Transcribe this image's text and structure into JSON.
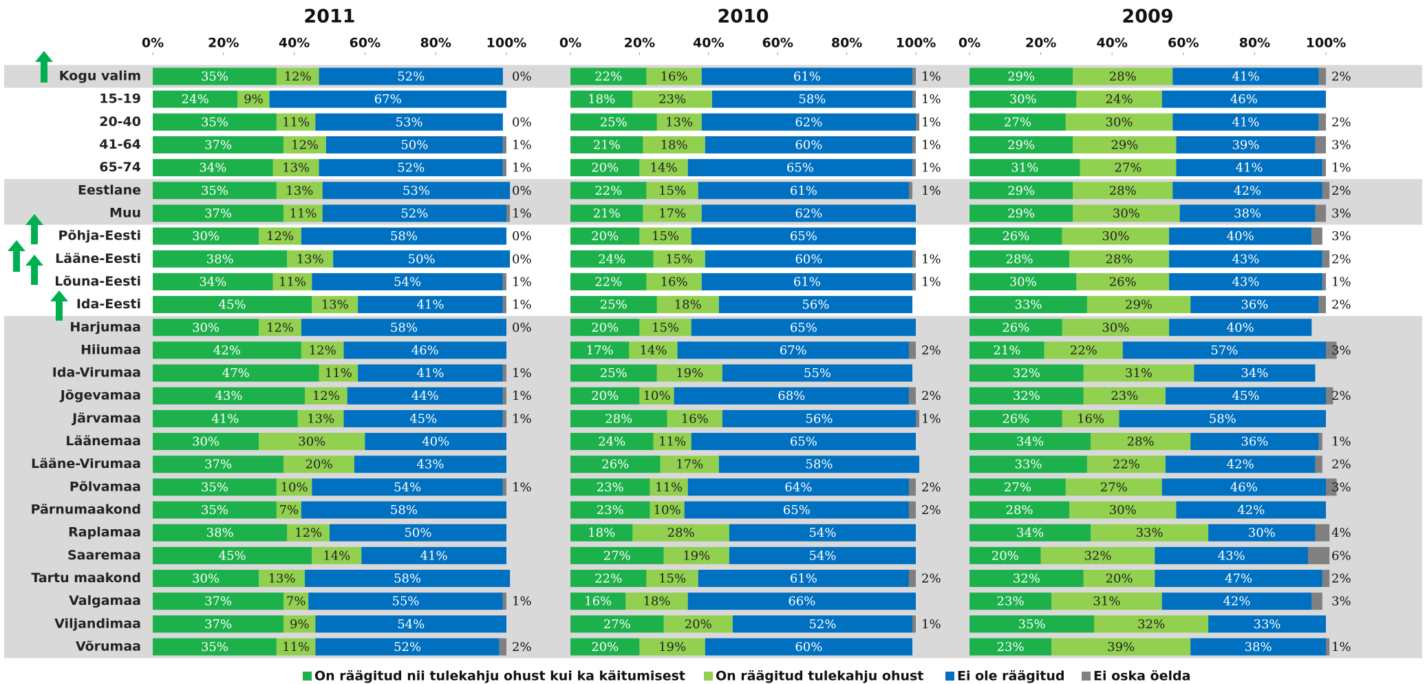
{
  "chart_data": {
    "type": "bar",
    "orientation": "horizontal",
    "stacked": true,
    "categories": [
      "Kogu valim",
      "15-19",
      "20-40",
      "41-64",
      "65-74",
      "Eestlane",
      "Muu",
      "Põhja-Eesti",
      "Lääne-Eesti",
      "Lõuna-Eesti",
      "Ida-Eesti",
      "Harjumaa",
      "Hiiumaa",
      "Ida-Virumaa",
      "Jõgevamaa",
      "Järvamaa",
      "Läänemaa",
      "Lääne-Virumaa",
      "Põlvamaa",
      "Pärnumaakond",
      "Raplamaa",
      "Saaremaa",
      "Tartu maakond",
      "Valgamaa",
      "Viljandimaa",
      "Võrumaa"
    ],
    "series": [
      {
        "name": "On räägitud nii tulekahju ohust kui ka käitumisest",
        "color": "#1db14b"
      },
      {
        "name": "On räägitud tulekahju ohust",
        "color": "#92d050"
      },
      {
        "name": "Ei ole räägitud",
        "color": "#0070c0"
      },
      {
        "name": "Ei oska öelda",
        "color": "#808080"
      }
    ],
    "xlim": [
      0,
      100
    ],
    "xticks": [
      {
        "value": 0,
        "label": "0%"
      },
      {
        "value": 20,
        "label": "20%"
      },
      {
        "value": 40,
        "label": "40%"
      },
      {
        "value": 60,
        "label": "60%"
      },
      {
        "value": 80,
        "label": "80%"
      },
      {
        "value": 100,
        "label": "100%"
      }
    ],
    "panels": [
      {
        "title": "2011",
        "series": [
          {
            "values": [
              35,
              24,
              35,
              37,
              34,
              35,
              37,
              30,
              38,
              34,
              45,
              30,
              42,
              47,
              43,
              41,
              30,
              37,
              35,
              35,
              38,
              45,
              30,
              37,
              37,
              35
            ],
            "value_labels": [
              "35%",
              "24%",
              "35%",
              "37%",
              "34%",
              "35%",
              "37%",
              "30%",
              "38%",
              "34%",
              "45%",
              "30%",
              "42%",
              "47%",
              "43%",
              "41%",
              "30%",
              "37%",
              "35%",
              "35%",
              "38%",
              "45%",
              "30%",
              "37%",
              "37%",
              "35%"
            ]
          },
          {
            "values": [
              12,
              9,
              11,
              12,
              13,
              13,
              11,
              12,
              13,
              11,
              13,
              12,
              12,
              11,
              12,
              13,
              30,
              20,
              10,
              7,
              12,
              14,
              13,
              7,
              9,
              11
            ],
            "value_labels": [
              "12%",
              "9%",
              "11%",
              "12%",
              "13%",
              "13%",
              "11%",
              "12%",
              "13%",
              "11%",
              "13%",
              "12%",
              "12%",
              "11%",
              "12%",
              "13%",
              "30%",
              "20%",
              "10%",
              "7%",
              "12%",
              "14%",
              "13%",
              "7%",
              "9%",
              "11%"
            ]
          },
          {
            "values": [
              52,
              67,
              53,
              50,
              52,
              53,
              52,
              58,
              50,
              54,
              41,
              58,
              46,
              41,
              44,
              45,
              40,
              43,
              54,
              58,
              50,
              41,
              58,
              55,
              54,
              52
            ],
            "value_labels": [
              "52%",
              "67%",
              "53%",
              "50%",
              "52%",
              "53%",
              "52%",
              "58%",
              "50%",
              "54%",
              "41%",
              "58%",
              "46%",
              "41%",
              "44%",
              "45%",
              "40%",
              "43%",
              "54%",
              "58%",
              "50%",
              "41%",
              "58%",
              "55%",
              "54%",
              "52%"
            ]
          },
          {
            "values": [
              0,
              null,
              0,
              1,
              1,
              0,
              1,
              0,
              0,
              1,
              1,
              0,
              null,
              1,
              1,
              1,
              null,
              null,
              1,
              null,
              null,
              null,
              null,
              1,
              null,
              2
            ],
            "value_labels": [
              "0%",
              null,
              "0%",
              "1%",
              "1%",
              "0%",
              "1%",
              "0%",
              "0%",
              "1%",
              "1%",
              "0%",
              null,
              "1%",
              "1%",
              "1%",
              null,
              null,
              "1%",
              null,
              null,
              null,
              null,
              "1%",
              null,
              "2%"
            ]
          }
        ]
      },
      {
        "title": "2010",
        "series": [
          {
            "values": [
              22,
              18,
              25,
              21,
              20,
              22,
              21,
              20,
              24,
              22,
              25,
              20,
              17,
              25,
              20,
              28,
              24,
              26,
              23,
              23,
              18,
              27,
              22,
              16,
              27,
              20
            ],
            "value_labels": [
              "22%",
              "18%",
              "25%",
              "21%",
              "20%",
              "22%",
              "21%",
              "20%",
              "24%",
              "22%",
              "25%",
              "20%",
              "17%",
              "25%",
              "20%",
              "28%",
              "24%",
              "26%",
              "23%",
              "23%",
              "18%",
              "27%",
              "22%",
              "16%",
              "27%",
              "20%"
            ]
          },
          {
            "values": [
              16,
              23,
              13,
              18,
              14,
              15,
              17,
              15,
              15,
              16,
              18,
              15,
              14,
              19,
              10,
              16,
              11,
              17,
              11,
              10,
              28,
              19,
              15,
              18,
              20,
              19
            ],
            "value_labels": [
              "16%",
              "23%",
              "13%",
              "18%",
              "14%",
              "15%",
              "17%",
              "15%",
              "15%",
              "16%",
              "18%",
              "15%",
              "14%",
              "19%",
              "10%",
              "16%",
              "11%",
              "17%",
              "11%",
              "10%",
              "28%",
              "19%",
              "15%",
              "18%",
              "20%",
              "19%"
            ]
          },
          {
            "values": [
              61,
              58,
              62,
              60,
              65,
              61,
              62,
              65,
              60,
              61,
              56,
              65,
              67,
              55,
              68,
              56,
              65,
              58,
              64,
              65,
              54,
              54,
              61,
              66,
              52,
              60
            ],
            "value_labels": [
              "61%",
              "58%",
              "62%",
              "60%",
              "65%",
              "61%",
              "62%",
              "65%",
              "60%",
              "61%",
              "56%",
              "65%",
              "67%",
              "55%",
              "68%",
              "56%",
              "65%",
              "58%",
              "64%",
              "65%",
              "54%",
              "54%",
              "61%",
              "66%",
              "52%",
              "60%"
            ]
          },
          {
            "values": [
              1,
              1,
              1,
              1,
              1,
              1,
              null,
              null,
              1,
              1,
              null,
              null,
              2,
              null,
              2,
              1,
              null,
              null,
              2,
              2,
              null,
              null,
              2,
              null,
              1,
              null
            ],
            "value_labels": [
              "1%",
              "1%",
              "1%",
              "1%",
              "1%",
              "1%",
              null,
              null,
              "1%",
              "1%",
              null,
              null,
              "2%",
              null,
              "2%",
              "1%",
              null,
              null,
              "2%",
              "2%",
              null,
              null,
              "2%",
              null,
              "1%",
              null
            ]
          }
        ]
      },
      {
        "title": "2009",
        "series": [
          {
            "values": [
              29,
              30,
              27,
              29,
              31,
              29,
              29,
              26,
              28,
              30,
              33,
              26,
              21,
              32,
              32,
              26,
              34,
              33,
              27,
              28,
              34,
              20,
              32,
              23,
              35,
              23
            ],
            "value_labels": [
              "29%",
              "30%",
              "27%",
              "29%",
              "31%",
              "29%",
              "29%",
              "26%",
              "28%",
              "30%",
              "33%",
              "26%",
              "21%",
              "32%",
              "32%",
              "26%",
              "34%",
              "33%",
              "27%",
              "28%",
              "34%",
              "20%",
              "32%",
              "23%",
              "35%",
              "23%"
            ]
          },
          {
            "values": [
              28,
              24,
              30,
              29,
              27,
              28,
              30,
              30,
              28,
              26,
              29,
              30,
              22,
              31,
              23,
              16,
              28,
              22,
              27,
              30,
              33,
              32,
              20,
              31,
              32,
              39
            ],
            "value_labels": [
              "28%",
              "24%",
              "30%",
              "29%",
              "27%",
              "28%",
              "30%",
              "30%",
              "28%",
              "26%",
              "29%",
              "30%",
              "22%",
              "31%",
              "23%",
              "16%",
              "28%",
              "22%",
              "27%",
              "30%",
              "33%",
              "32%",
              "20%",
              "31%",
              "32%",
              "39%"
            ]
          },
          {
            "values": [
              41,
              46,
              41,
              39,
              41,
              42,
              38,
              40,
              43,
              43,
              36,
              40,
              57,
              34,
              45,
              58,
              36,
              42,
              46,
              42,
              30,
              43,
              47,
              42,
              33,
              38
            ],
            "value_labels": [
              "41%",
              "46%",
              "41%",
              "39%",
              "41%",
              "42%",
              "38%",
              "40%",
              "43%",
              "43%",
              "36%",
              "40%",
              "57%",
              "34%",
              "45%",
              "58%",
              "36%",
              "42%",
              "46%",
              "42%",
              "30%",
              "43%",
              "47%",
              "42%",
              "33%",
              "38%"
            ]
          },
          {
            "values": [
              2,
              null,
              2,
              3,
              1,
              2,
              3,
              3,
              2,
              1,
              2,
              null,
              3,
              null,
              2,
              null,
              1,
              2,
              3,
              null,
              4,
              6,
              2,
              3,
              null,
              1
            ],
            "value_labels": [
              "2%",
              null,
              "2%",
              "3%",
              "1%",
              "2%",
              "3%",
              "3%",
              "2%",
              "1%",
              "2%",
              null,
              "3%",
              null,
              "2%",
              null,
              "1%",
              "2%",
              "3%",
              null,
              "4%",
              "6%",
              "2%",
              "3%",
              null,
              "1%"
            ]
          }
        ]
      }
    ]
  }
}
